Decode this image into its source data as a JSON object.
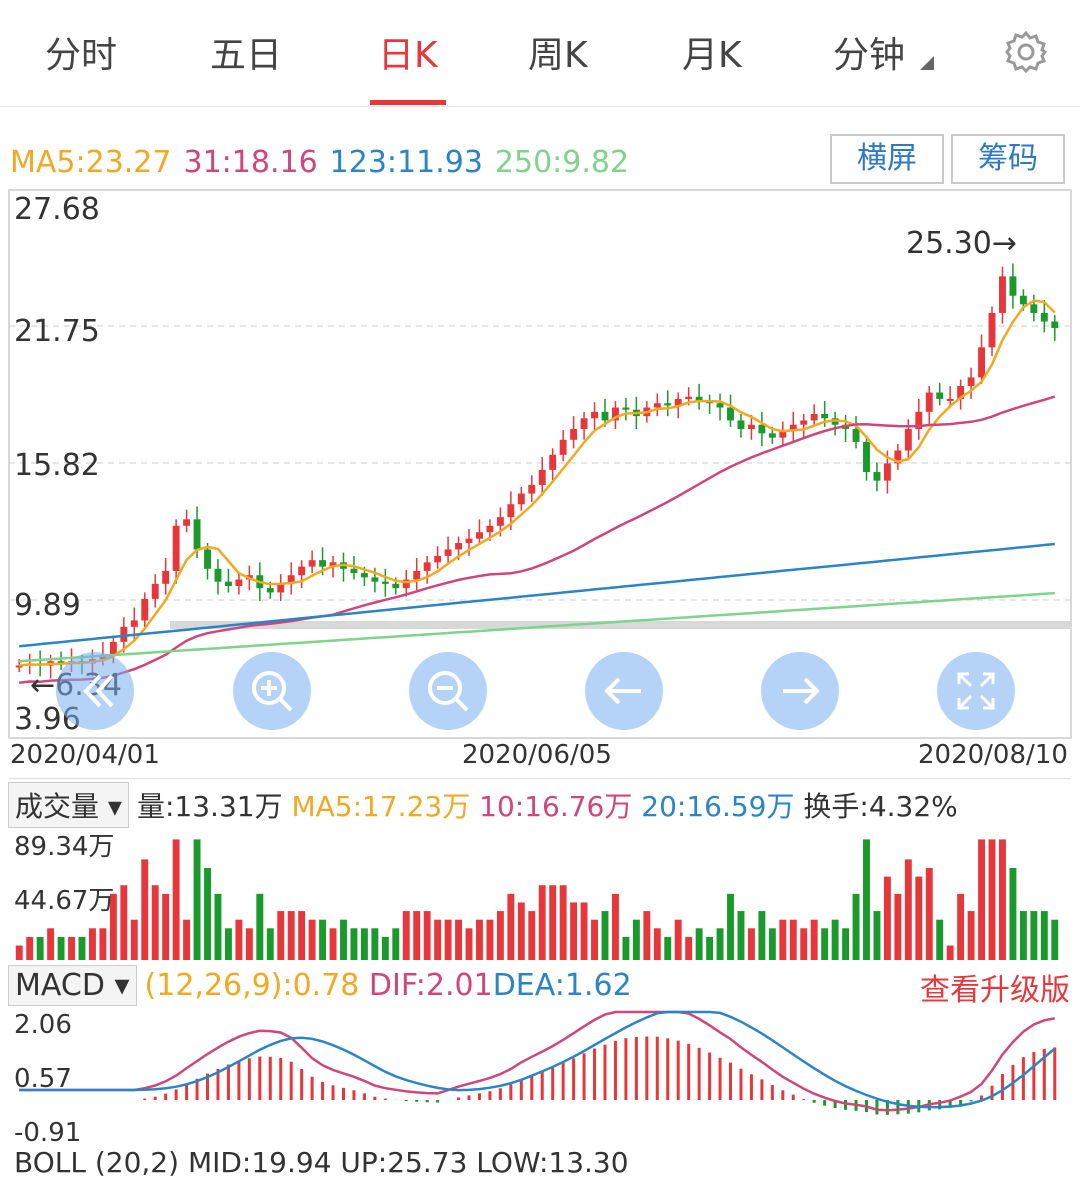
{
  "tabs": [
    {
      "label": "分时",
      "active": false
    },
    {
      "label": "五日",
      "active": false
    },
    {
      "label": "日K",
      "active": true
    },
    {
      "label": "周K",
      "active": false
    },
    {
      "label": "月K",
      "active": false
    },
    {
      "label": "分钟",
      "active": false
    }
  ],
  "ma": {
    "ma5": "MA5:23.27",
    "ma31": "31:18.16",
    "ma123": "123:11.93",
    "ma250": "250:9.82"
  },
  "buttons": {
    "landscape": "横屏",
    "chips": "筹码"
  },
  "price_axis": [
    "27.68",
    "21.75",
    "15.82",
    "9.89",
    "3.96"
  ],
  "date_axis": [
    "2020/04/01",
    "2020/06/05",
    "2020/08/10"
  ],
  "annotations": {
    "high": "25.30→",
    "low": "←6.34"
  },
  "volume": {
    "selector": "成交量",
    "vol": "量:13.31万",
    "ma5": "MA5:17.23万",
    "ma10": "10:16.76万",
    "ma20": "20:16.59万",
    "turnover": "换手:4.32%",
    "axis": [
      "89.34万",
      "44.67万"
    ]
  },
  "macd": {
    "selector": "MACD",
    "params": "(12,26,9):0.78",
    "dif": "DIF:2.01",
    "dea": "DEA:1.62",
    "upgrade": "查看升级版",
    "axis": [
      "2.06",
      "0.57",
      "-0.91"
    ]
  },
  "boll": {
    "text": "BOLL (20,2) MID:19.94 UP:25.73 LOW:13.30"
  },
  "colors": {
    "up": "#e8373b",
    "down": "#1a9a2a",
    "ma5": "#f2a922",
    "ma31": "#d0457a",
    "ma123": "#2b84c6",
    "ma250": "#7fd38a"
  },
  "chart_data": {
    "type": "candlestick",
    "ylim": [
      3.96,
      27.68
    ],
    "x_start": "2020/04/01",
    "x_mid": "2020/06/05",
    "x_end": "2020/08/10",
    "high": 25.3,
    "low": 6.34,
    "closes": [
      6.4,
      6.5,
      6.4,
      6.6,
      6.5,
      6.6,
      6.5,
      6.7,
      6.9,
      7.5,
      8.2,
      8.5,
      9.5,
      10.2,
      10.8,
      12.9,
      13.2,
      11.8,
      10.9,
      10.3,
      10.1,
      10.4,
      10.6,
      10.0,
      9.8,
      10.2,
      10.6,
      11.0,
      11.3,
      11.0,
      11.2,
      10.9,
      10.7,
      10.5,
      10.3,
      10.2,
      10.0,
      10.4,
      10.8,
      11.2,
      11.5,
      11.8,
      12.1,
      12.3,
      12.6,
      12.9,
      13.3,
      13.9,
      14.4,
      14.8,
      15.5,
      16.2,
      16.9,
      17.4,
      17.9,
      18.2,
      17.8,
      18.4,
      18.3,
      18.0,
      18.4,
      18.6,
      18.5,
      18.8,
      18.9,
      18.7,
      18.6,
      18.4,
      17.8,
      17.4,
      17.6,
      17.2,
      17.0,
      17.3,
      17.6,
      17.8,
      18.1,
      17.9,
      17.6,
      17.4,
      16.8,
      15.4,
      15.0,
      15.8,
      16.4,
      17.4,
      18.2,
      19.1,
      18.8,
      18.8,
      19.4,
      19.8,
      21.2,
      22.8,
      24.5,
      23.6,
      23.2,
      22.8,
      22.4,
      22.1
    ],
    "volume_axis": [
      89.34,
      44.67
    ],
    "macd_axis": [
      2.06,
      0.57,
      -0.91
    ]
  }
}
